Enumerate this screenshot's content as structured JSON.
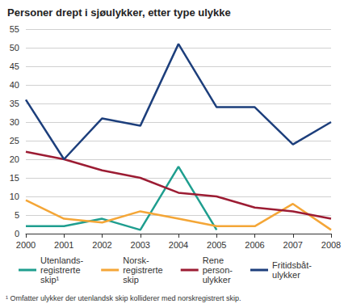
{
  "chart_data": {
    "type": "line",
    "title": "Personer drept i sjøulykker, etter type ulykke",
    "categories": [
      "2000",
      "2001",
      "2002",
      "2003",
      "2004",
      "2005",
      "2006",
      "2007",
      "2008"
    ],
    "series": [
      {
        "name": "Utenlands-\nregistrerte\nskip¹",
        "color": "#1f9e8f",
        "values": [
          2,
          2,
          4,
          1,
          18,
          1,
          null,
          null,
          null
        ]
      },
      {
        "name": "Norsk-\nregistrerte\nskip",
        "color": "#f4a637",
        "values": [
          9,
          4,
          3,
          6,
          4,
          2,
          2,
          8,
          1
        ]
      },
      {
        "name": "Rene\nperson-\nulykker",
        "color": "#9c1c33",
        "values": [
          22,
          20,
          17,
          15,
          11,
          10,
          7,
          6,
          4
        ]
      },
      {
        "name": "Fritidsbåt-\nulykker",
        "color": "#1d3f7c",
        "values": [
          36,
          20,
          31,
          29,
          51,
          34,
          34,
          24,
          30
        ]
      }
    ],
    "ylim": [
      0,
      55
    ],
    "yticks": [
      0,
      5,
      10,
      15,
      20,
      25,
      30,
      35,
      40,
      45,
      50,
      55
    ],
    "grid": true,
    "legend": "bottom",
    "footnote": "¹ Omfatter ulykker der utenlandsk skip kolliderer med norskregistrert skip."
  }
}
